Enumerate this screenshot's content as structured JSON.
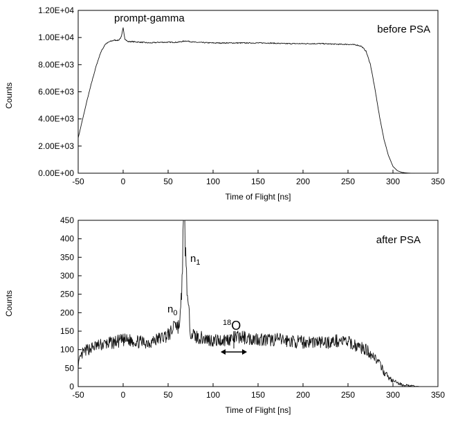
{
  "chart_data": [
    {
      "type": "line",
      "panel_label": "before PSA",
      "xlabel": "Time of Flight [ns]",
      "ylabel": "Counts",
      "xlim": [
        -50,
        350
      ],
      "ylim": [
        0,
        12000
      ],
      "xticks": [
        -50,
        0,
        50,
        100,
        150,
        200,
        250,
        300,
        350
      ],
      "xtick_labels": [
        "-50",
        "0",
        "50",
        "100",
        "150",
        "200",
        "250",
        "300",
        "350"
      ],
      "yticks": [
        0,
        2000,
        4000,
        6000,
        8000,
        10000,
        12000
      ],
      "ytick_labels": [
        "0.00E+00",
        "2.00E+03",
        "4.00E+03",
        "6.00E+03",
        "8.00E+03",
        "1.00E+04",
        "1.20E+04"
      ],
      "annotations": [
        {
          "text": "prompt-gamma",
          "x": 0,
          "y": 10700
        }
      ],
      "series": [
        {
          "x": [
            -50,
            -45,
            -40,
            -35,
            -30,
            -25,
            -20,
            -15,
            -10,
            -5,
            -2,
            0,
            2,
            5,
            10,
            20,
            30,
            40,
            50,
            60,
            70,
            80,
            100,
            120,
            140,
            160,
            180,
            200,
            220,
            240,
            250,
            260,
            265,
            270,
            275,
            280,
            285,
            290,
            295,
            300,
            305,
            310,
            315,
            320,
            330,
            340,
            350
          ],
          "y": [
            2600,
            4000,
            5400,
            6700,
            7900,
            8900,
            9500,
            9700,
            9800,
            9800,
            10050,
            10700,
            9900,
            9700,
            9700,
            9650,
            9600,
            9650,
            9650,
            9650,
            9750,
            9650,
            9600,
            9600,
            9600,
            9600,
            9550,
            9550,
            9550,
            9500,
            9500,
            9450,
            9350,
            9000,
            8000,
            6200,
            4200,
            2500,
            1300,
            500,
            180,
            60,
            20,
            5,
            0,
            0,
            0
          ]
        }
      ]
    },
    {
      "type": "line",
      "panel_label": "after PSA",
      "xlabel": "Time of Flight [ns]",
      "ylabel": "Counts",
      "xlim": [
        -50,
        350
      ],
      "ylim": [
        0,
        450
      ],
      "xticks": [
        -50,
        0,
        50,
        100,
        150,
        200,
        250,
        300,
        350
      ],
      "xtick_labels": [
        "-50",
        "0",
        "50",
        "100",
        "150",
        "200",
        "250",
        "300",
        "350"
      ],
      "yticks": [
        0,
        50,
        100,
        150,
        200,
        250,
        300,
        350,
        400,
        450
      ],
      "ytick_labels": [
        "0",
        "50",
        "100",
        "150",
        "200",
        "250",
        "300",
        "350",
        "400",
        "450"
      ],
      "annotations": [
        {
          "text": "n",
          "subscript": "0",
          "x": 57,
          "y": 185
        },
        {
          "text": "n",
          "subscript": "1",
          "x": 68,
          "y": 450
        },
        {
          "text": "O",
          "superscript": "18",
          "x_range": [
            110,
            135
          ]
        }
      ],
      "series": [
        {
          "x": [
            -50,
            -45,
            -40,
            -30,
            -20,
            -10,
            0,
            10,
            20,
            30,
            40,
            50,
            55,
            57,
            60,
            63,
            65,
            67,
            68,
            70,
            72,
            75,
            80,
            90,
            100,
            110,
            120,
            130,
            140,
            150,
            160,
            170,
            180,
            190,
            200,
            210,
            220,
            230,
            240,
            250,
            255,
            260,
            265,
            270,
            275,
            280,
            285,
            290,
            295,
            300,
            310,
            320,
            330,
            340,
            350
          ],
          "y": [
            60,
            90,
            100,
            110,
            115,
            120,
            125,
            125,
            120,
            120,
            130,
            140,
            150,
            185,
            160,
            170,
            250,
            440,
            450,
            330,
            220,
            150,
            135,
            130,
            125,
            125,
            130,
            135,
            130,
            130,
            125,
            128,
            125,
            122,
            120,
            122,
            120,
            120,
            125,
            120,
            115,
            110,
            105,
            100,
            90,
            80,
            60,
            40,
            25,
            15,
            5,
            2,
            0,
            0,
            0
          ]
        }
      ]
    }
  ]
}
